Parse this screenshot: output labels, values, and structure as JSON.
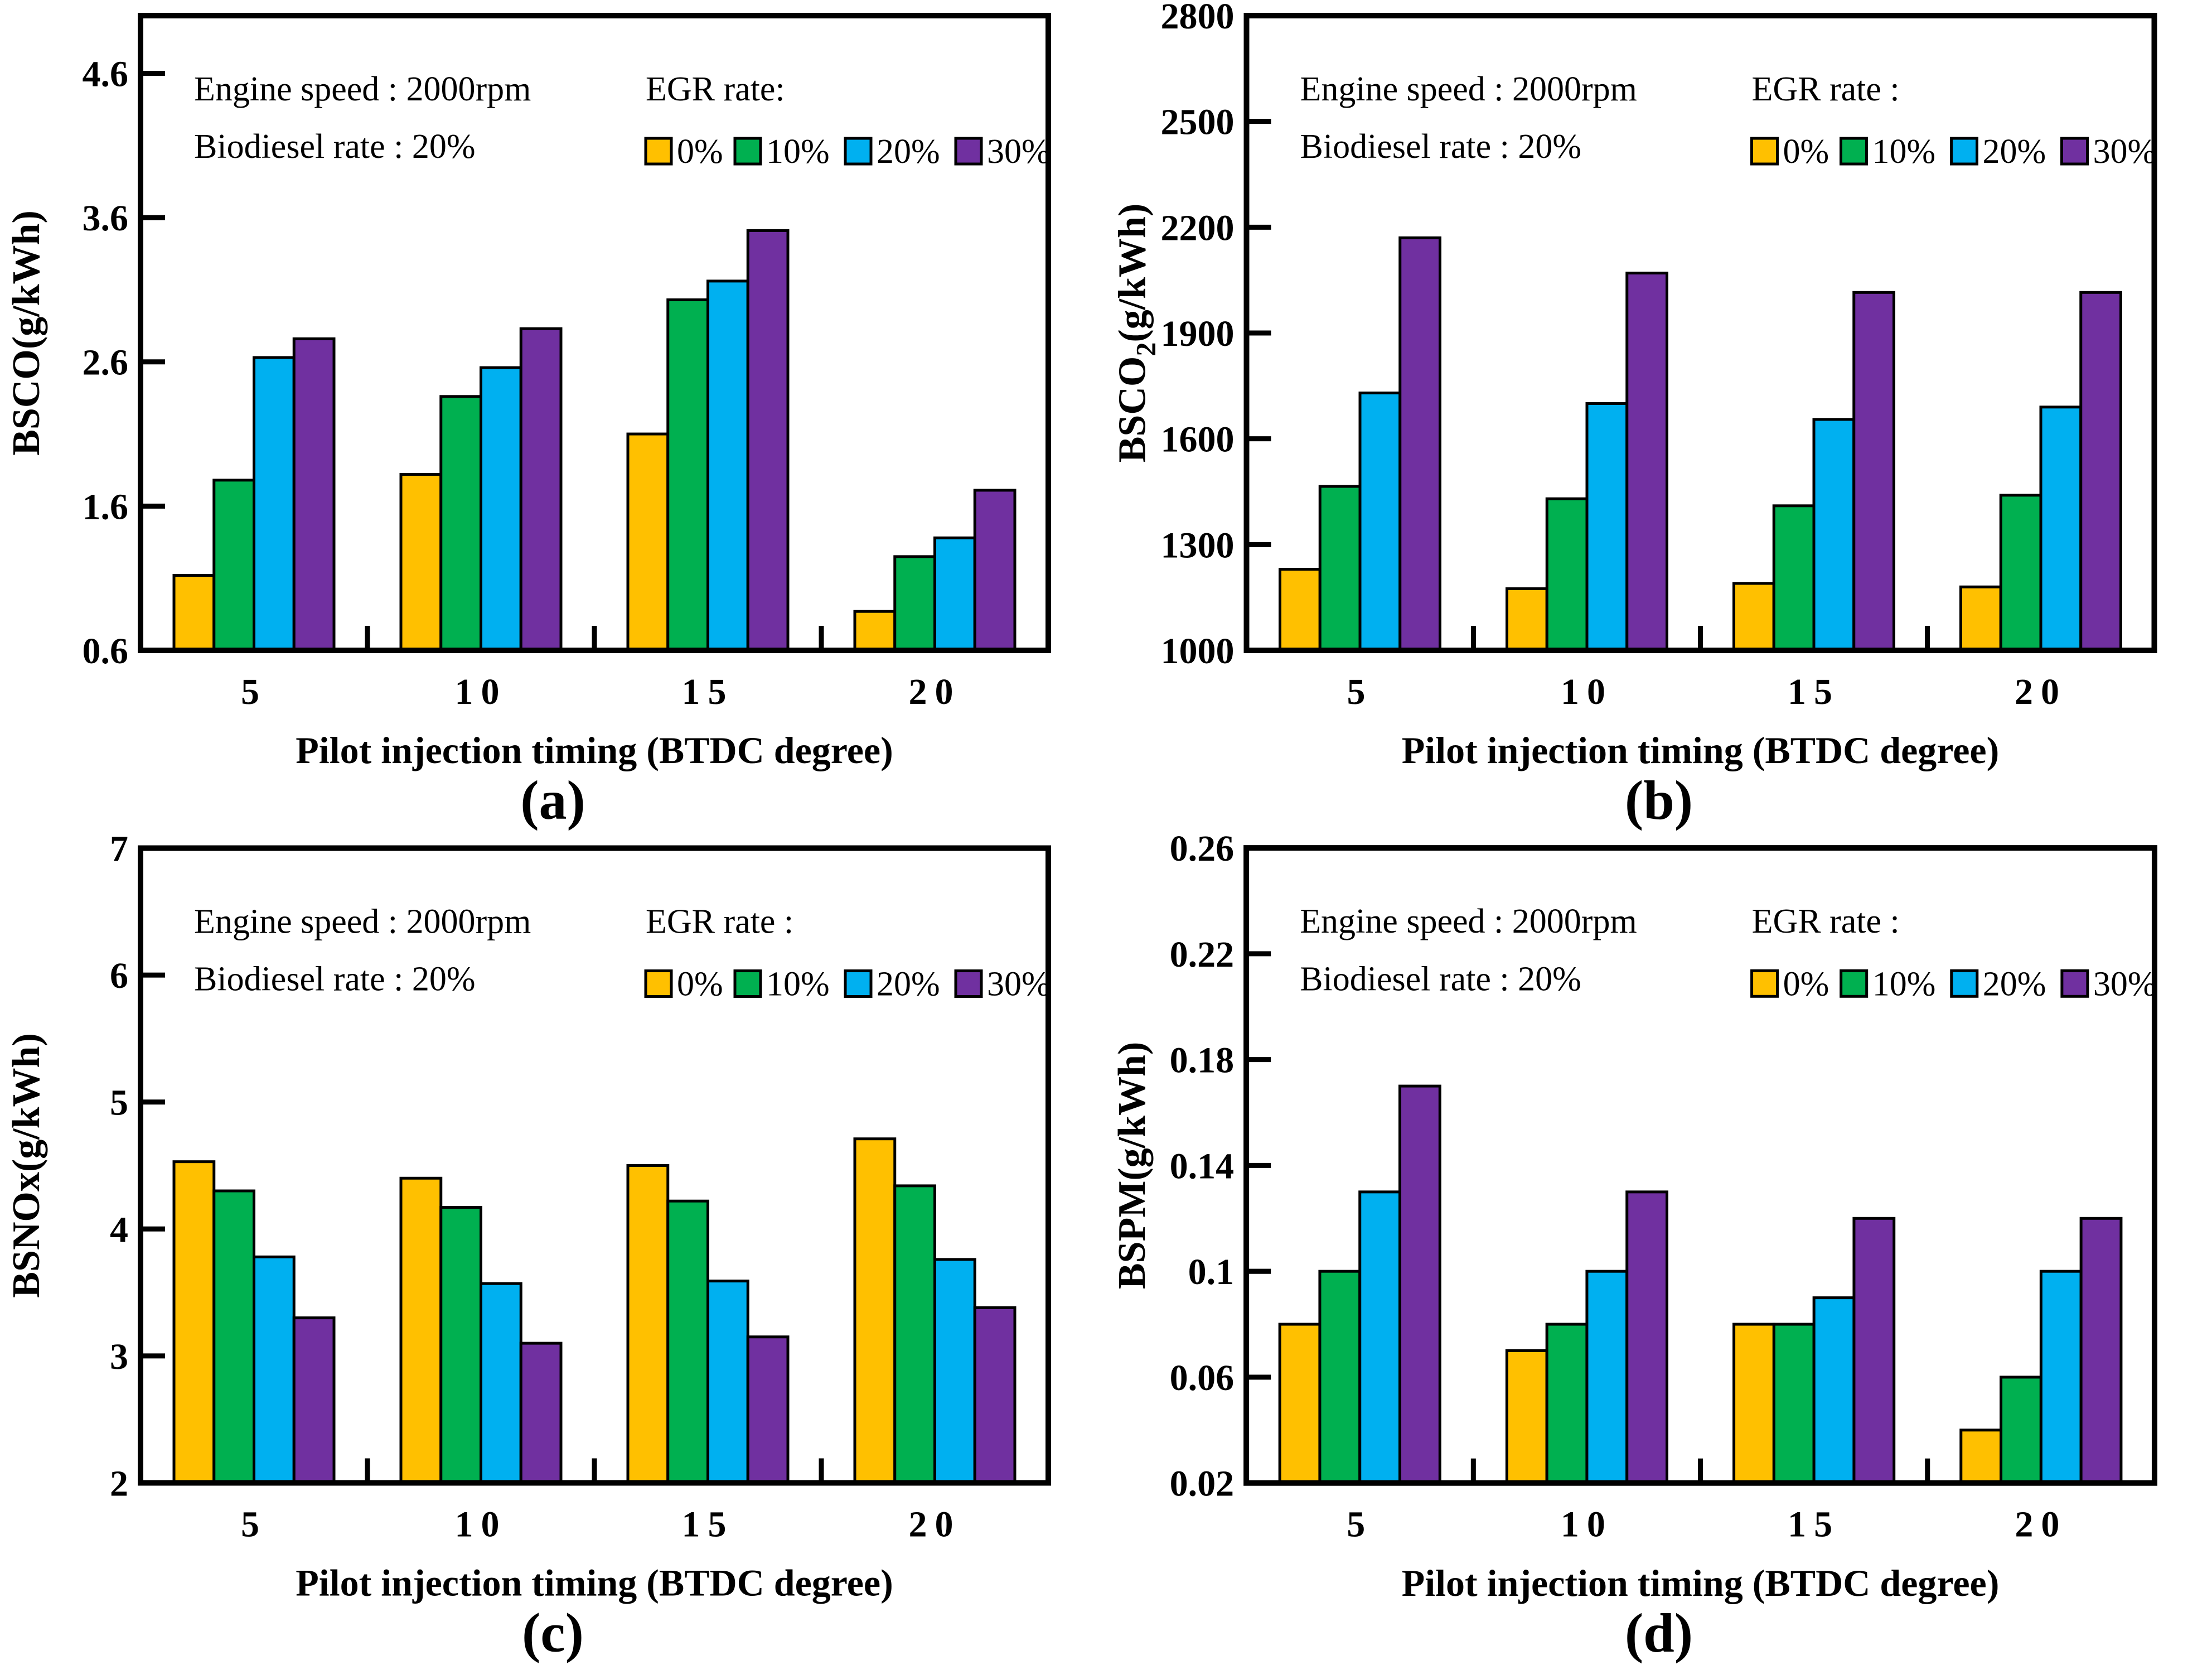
{
  "figure": {
    "xlabel": "Pilot injection timing (BTDC degree)",
    "annotation_lines": [
      "Engine speed : 2000rpm",
      "Biodiesel rate : 20%"
    ],
    "series_names": [
      "0%",
      "10%",
      "20%",
      "30%"
    ],
    "series_colors": [
      "#FFC000",
      "#00B050",
      "#00B0F0",
      "#7030A0"
    ],
    "categories": [
      "5",
      "10",
      "15",
      "20"
    ]
  },
  "chart_data": [
    {
      "type": "bar",
      "panel_label": "(a)",
      "ylabel_parts": [
        {
          "t": "BSCO(g/kWh)"
        }
      ],
      "legend_title": "EGR rate:",
      "xlabel": "Pilot injection timing (BTDC degree)",
      "categories": [
        "5",
        "10",
        "15",
        "20"
      ],
      "ylim": [
        0.6,
        5.0
      ],
      "yticks": [
        0.6,
        1.6,
        2.6,
        3.6,
        4.6
      ],
      "ytick_labels": [
        "0.6",
        "1.6",
        "2.6",
        "3.6",
        "4.6"
      ],
      "legend_position": "top-right-inside",
      "grid": false,
      "series": [
        {
          "name": "0%",
          "values": [
            1.12,
            1.82,
            2.1,
            0.87
          ]
        },
        {
          "name": "10%",
          "values": [
            1.78,
            2.36,
            3.03,
            1.25
          ]
        },
        {
          "name": "20%",
          "values": [
            2.63,
            2.56,
            3.16,
            1.38
          ]
        },
        {
          "name": "30%",
          "values": [
            2.76,
            2.83,
            3.51,
            1.71
          ]
        }
      ]
    },
    {
      "type": "bar",
      "panel_label": "(b)",
      "ylabel_parts": [
        {
          "t": "BSCO"
        },
        {
          "t": "2",
          "sub": true
        },
        {
          "t": "(g/kWh)"
        }
      ],
      "legend_title": "EGR rate :",
      "xlabel": "Pilot injection timing (BTDC degree)",
      "categories": [
        "5",
        "10",
        "15",
        "20"
      ],
      "ylim": [
        1000,
        2800
      ],
      "yticks": [
        1000,
        1300,
        1600,
        1900,
        2200,
        2500,
        2800
      ],
      "ytick_labels": [
        "1000",
        "1300",
        "1600",
        "1900",
        "2200",
        "2500",
        "2800"
      ],
      "legend_position": "top-right-inside",
      "grid": false,
      "series": [
        {
          "name": "0%",
          "values": [
            1230,
            1175,
            1190,
            1180
          ]
        },
        {
          "name": "10%",
          "values": [
            1465,
            1430,
            1410,
            1440
          ]
        },
        {
          "name": "20%",
          "values": [
            1730,
            1700,
            1655,
            1690
          ]
        },
        {
          "name": "30%",
          "values": [
            2170,
            2070,
            2015,
            2015
          ]
        }
      ]
    },
    {
      "type": "bar",
      "panel_label": "(c)",
      "ylabel_parts": [
        {
          "t": "BSNOx(g/kWh)"
        }
      ],
      "legend_title": "EGR rate :",
      "xlabel": "Pilot injection timing (BTDC degree)",
      "categories": [
        "5",
        "10",
        "15",
        "20"
      ],
      "ylim": [
        2,
        7
      ],
      "yticks": [
        2,
        3,
        4,
        5,
        6,
        7
      ],
      "ytick_labels": [
        "2",
        "3",
        "4",
        "5",
        "6",
        "7"
      ],
      "legend_position": "top-right-inside",
      "grid": false,
      "series": [
        {
          "name": "0%",
          "values": [
            4.53,
            4.4,
            4.5,
            4.71
          ]
        },
        {
          "name": "10%",
          "values": [
            4.3,
            4.17,
            4.22,
            4.34
          ]
        },
        {
          "name": "20%",
          "values": [
            3.78,
            3.57,
            3.59,
            3.76
          ]
        },
        {
          "name": "30%",
          "values": [
            3.3,
            3.1,
            3.15,
            3.38
          ]
        }
      ]
    },
    {
      "type": "bar",
      "panel_label": "(d)",
      "ylabel_parts": [
        {
          "t": "BSPM(g/kWh)"
        }
      ],
      "legend_title": "EGR rate :",
      "xlabel": "Pilot injection timing (BTDC degree)",
      "categories": [
        "5",
        "10",
        "15",
        "20"
      ],
      "ylim": [
        0.02,
        0.26
      ],
      "yticks": [
        0.02,
        0.06,
        0.1,
        0.14,
        0.18,
        0.22,
        0.26
      ],
      "ytick_labels": [
        "0.02",
        "0.06",
        "0.1",
        "0.14",
        "0.18",
        "0.22",
        "0.26"
      ],
      "legend_position": "top-right-inside",
      "grid": false,
      "series": [
        {
          "name": "0%",
          "values": [
            0.08,
            0.07,
            0.08,
            0.04
          ]
        },
        {
          "name": "10%",
          "values": [
            0.1,
            0.08,
            0.08,
            0.06
          ]
        },
        {
          "name": "20%",
          "values": [
            0.13,
            0.1,
            0.09,
            0.1
          ]
        },
        {
          "name": "30%",
          "values": [
            0.17,
            0.13,
            0.12,
            0.12
          ]
        }
      ]
    }
  ]
}
